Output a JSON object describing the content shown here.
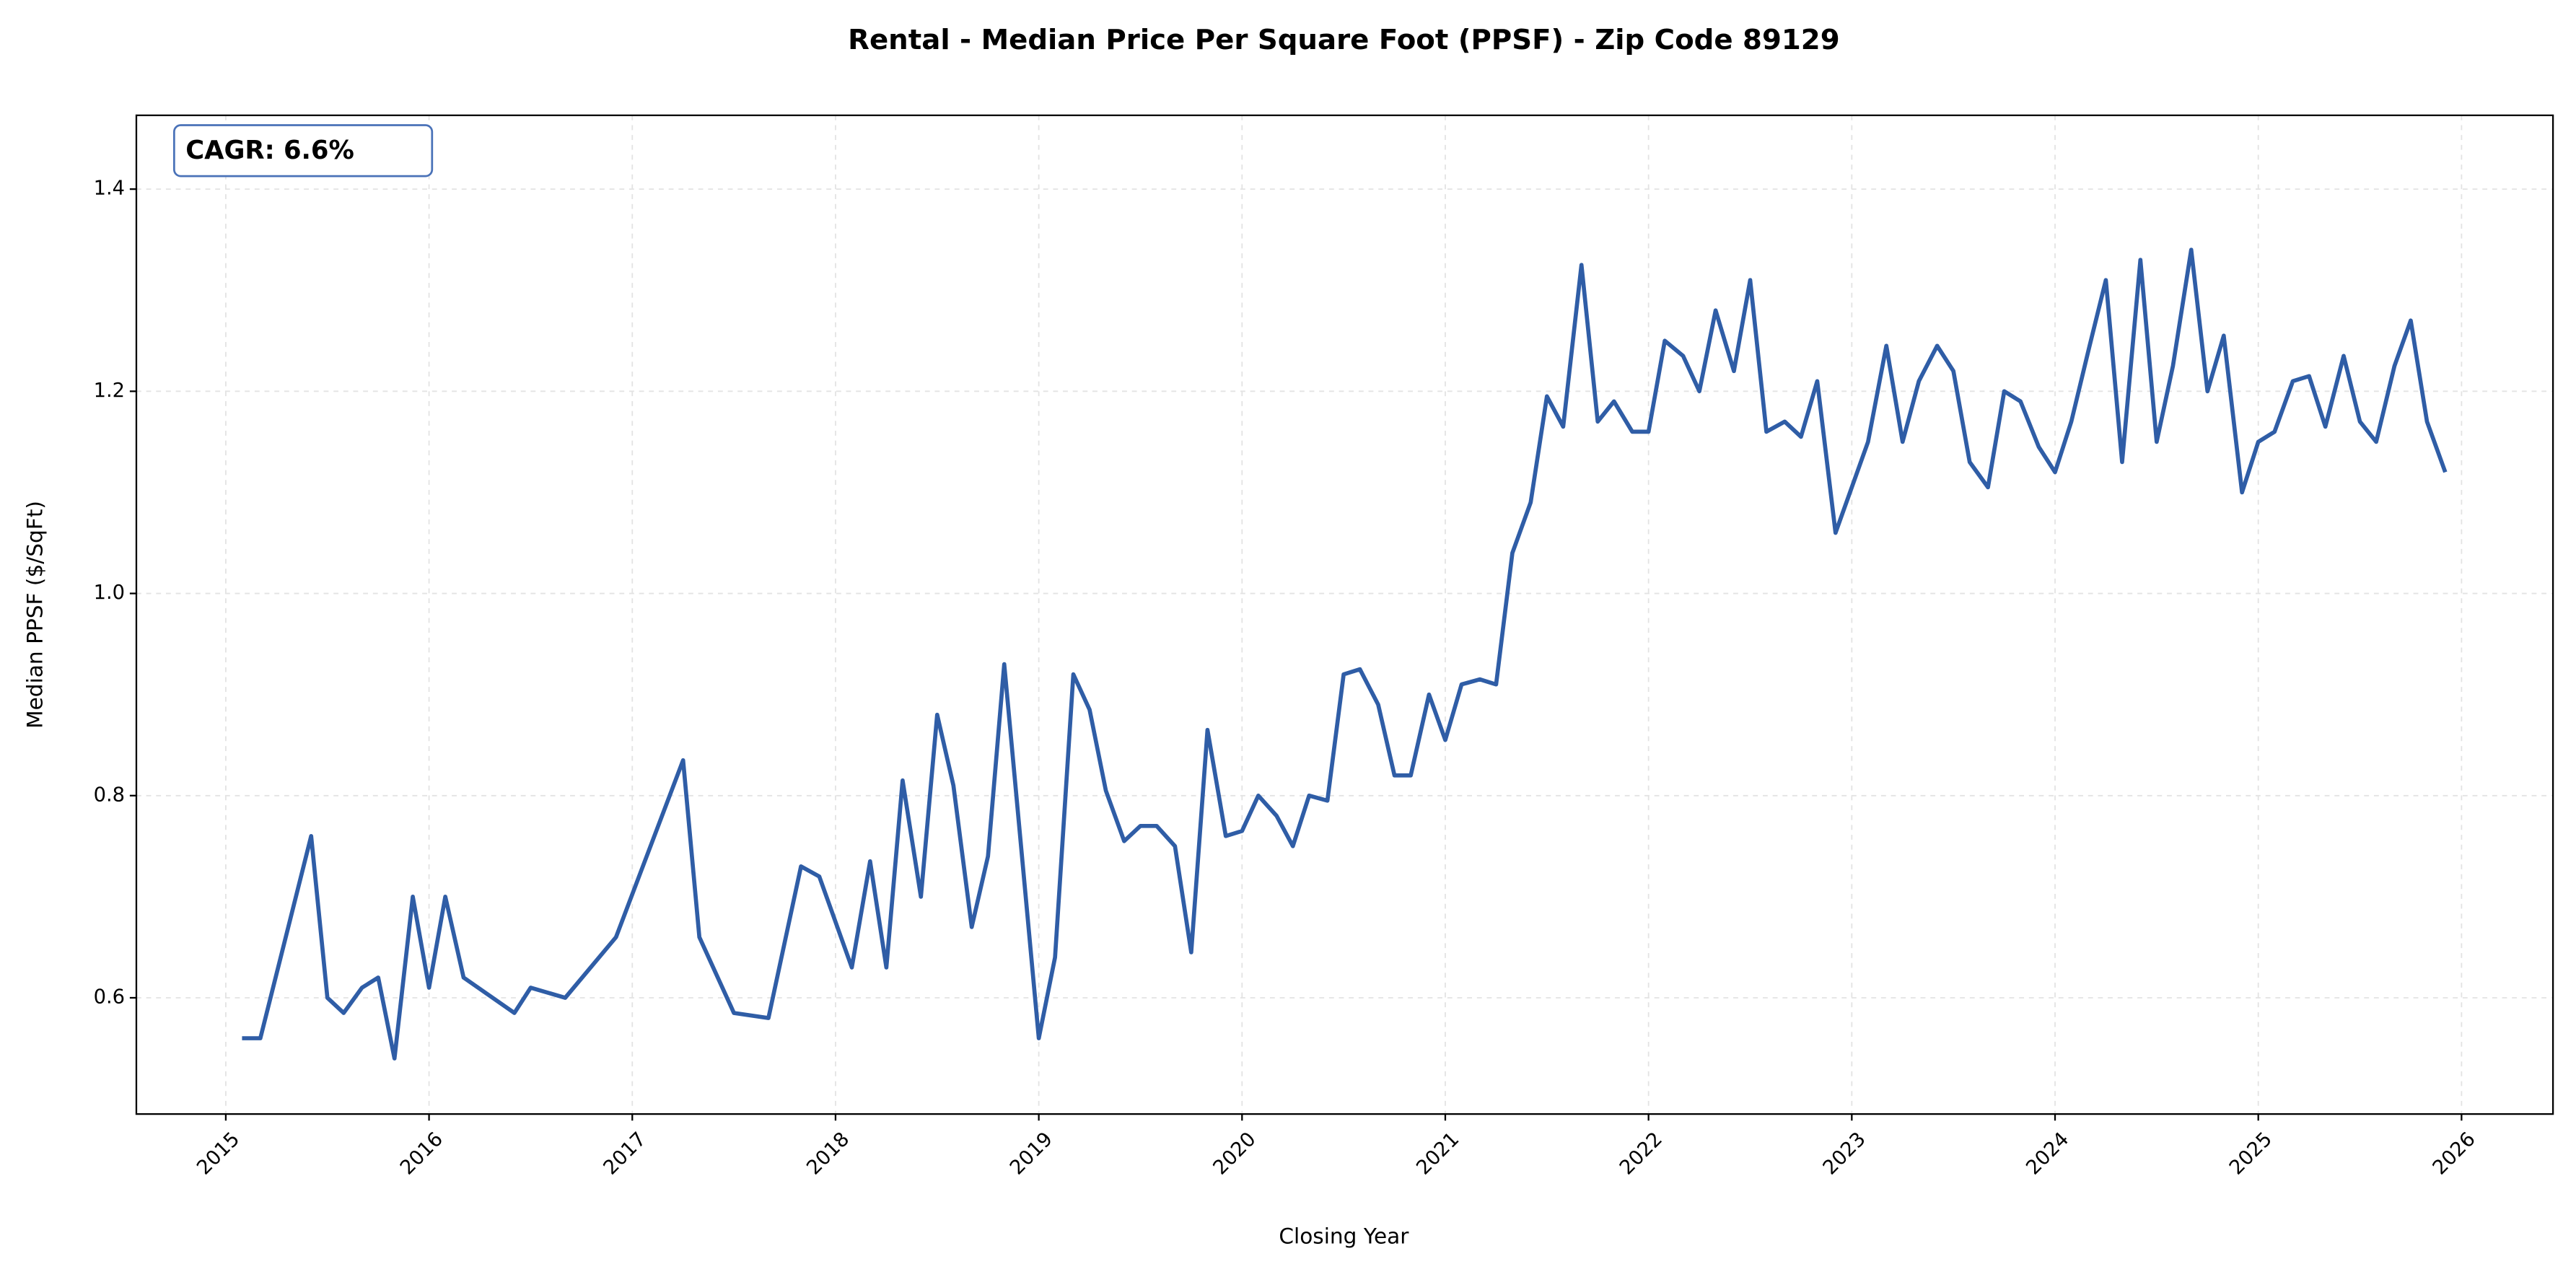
{
  "chart_data": {
    "type": "line",
    "title": "Rental - Median Price Per Square Foot (PPSF) - Zip Code 89129",
    "xlabel": "Closing Year",
    "ylabel": "Median PPSF ($/SqFt)",
    "annotation": "CAGR: 6.6%",
    "grid": true,
    "xlim": [
      2014.56,
      2026.45
    ],
    "ylim": [
      0.485,
      1.473
    ],
    "xticks": [
      2015,
      2016,
      2017,
      2018,
      2019,
      2020,
      2021,
      2022,
      2023,
      2024,
      2025,
      2026
    ],
    "yticks": [
      0.6,
      0.8,
      {
        "value": 1,
        "label": "1.0"
      },
      1.2,
      1.4
    ],
    "x": [
      2015.08,
      2015.17,
      2015.42,
      2015.5,
      2015.58,
      2015.67,
      2015.75,
      2015.83,
      2015.92,
      2016,
      2016.08,
      2016.17,
      2016.42,
      2016.5,
      2016.67,
      2016.92,
      2017.25,
      2017.33,
      2017.5,
      2017.67,
      2017.83,
      2017.92,
      2018.08,
      2018.17,
      2018.25,
      2018.33,
      2018.42,
      2018.5,
      2018.58,
      2018.67,
      2018.75,
      2018.83,
      2019,
      2019.08,
      2019.17,
      2019.25,
      2019.33,
      2019.42,
      2019.5,
      2019.58,
      2019.67,
      2019.75,
      2019.83,
      2019.92,
      2020,
      2020.08,
      2020.17,
      2020.25,
      2020.33,
      2020.42,
      2020.5,
      2020.58,
      2020.67,
      2020.75,
      2020.83,
      2020.92,
      2021,
      2021.08,
      2021.17,
      2021.25,
      2021.33,
      2021.42,
      2021.5,
      2021.58,
      2021.67,
      2021.75,
      2021.83,
      2021.92,
      2022,
      2022.08,
      2022.17,
      2022.25,
      2022.33,
      2022.42,
      2022.5,
      2022.58,
      2022.67,
      2022.75,
      2022.83,
      2022.92,
      2023.08,
      2023.17,
      2023.25,
      2023.33,
      2023.42,
      2023.5,
      2023.58,
      2023.67,
      2023.75,
      2023.83,
      2023.92,
      2024,
      2024.08,
      2024.17,
      2024.25,
      2024.33,
      2024.42,
      2024.5,
      2024.58,
      2024.67,
      2024.75,
      2024.83,
      2024.92,
      2025,
      2025.08,
      2025.17,
      2025.25,
      2025.33,
      2025.42,
      2025.5,
      2025.58,
      2025.67,
      2025.75,
      2025.83,
      2025.92
    ],
    "series": [
      {
        "color": "#2f5da6",
        "values": [
          0.56,
          0.56,
          0.76,
          0.6,
          0.585,
          0.61,
          0.62,
          0.54,
          0.7,
          0.61,
          0.7,
          0.62,
          0.585,
          0.61,
          0.6,
          0.66,
          0.835,
          0.66,
          0.585,
          0.58,
          0.73,
          0.72,
          0.63,
          0.735,
          0.63,
          0.815,
          0.7,
          0.88,
          0.81,
          0.67,
          0.74,
          0.93,
          0.56,
          0.64,
          0.92,
          0.885,
          0.805,
          0.755,
          0.77,
          0.77,
          0.75,
          0.645,
          0.865,
          0.76,
          0.765,
          0.8,
          0.78,
          0.75,
          0.8,
          0.795,
          0.92,
          0.925,
          0.89,
          0.82,
          0.82,
          0.9,
          0.855,
          0.91,
          0.915,
          0.91,
          1.04,
          1.09,
          1.195,
          1.165,
          1.325,
          1.17,
          1.19,
          1.16,
          1.16,
          1.25,
          1.235,
          1.2,
          1.28,
          1.22,
          1.31,
          1.16,
          1.17,
          1.155,
          1.21,
          1.06,
          1.15,
          1.245,
          1.15,
          1.21,
          1.245,
          1.22,
          1.13,
          1.105,
          1.2,
          1.19,
          1.145,
          1.12,
          1.17,
          1.245,
          1.31,
          1.13,
          1.33,
          1.15,
          1.225,
          1.34,
          1.2,
          1.255,
          1.1,
          1.15,
          1.16,
          1.21,
          1.215,
          1.165,
          1.235,
          1.17,
          1.15,
          1.225,
          1.27,
          1.17,
          1.12
        ]
      }
    ]
  }
}
